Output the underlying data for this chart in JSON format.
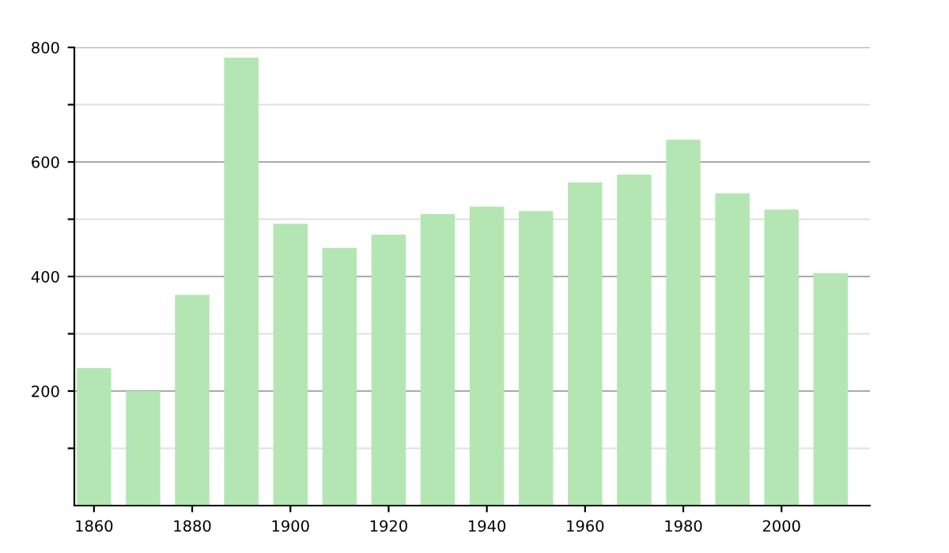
{
  "chart_data": {
    "type": "bar",
    "x": [
      1860,
      1870,
      1880,
      1890,
      1900,
      1910,
      1920,
      1930,
      1940,
      1950,
      1960,
      1970,
      1980,
      1990,
      2000,
      2010
    ],
    "values": [
      240,
      200,
      368,
      782,
      492,
      450,
      473,
      509,
      522,
      514,
      564,
      578,
      639,
      545,
      517,
      406
    ],
    "color": "#b3e6b3",
    "xlim": [
      1856,
      2018
    ],
    "xticks": [
      1860,
      1880,
      1900,
      1920,
      1940,
      1960,
      1980,
      2000
    ],
    "ylim": [
      0,
      800
    ],
    "yticks": [
      {
        "value": 100,
        "label": null
      },
      200,
      {
        "value": 300,
        "label": null
      },
      400,
      {
        "value": 500,
        "label": null
      },
      600,
      {
        "value": 700,
        "label": null
      },
      800
    ],
    "grid": "y",
    "legend": false
  }
}
